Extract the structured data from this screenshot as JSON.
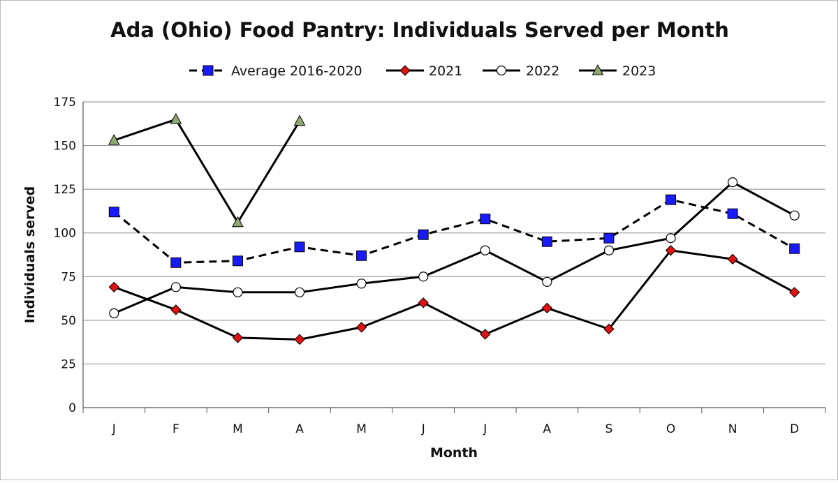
{
  "chart_data": {
    "type": "line",
    "title": "Ada (Ohio) Food Pantry: Individuals Served per Month",
    "xlabel": "Month",
    "ylabel": "Individuals  served",
    "categories": [
      "J",
      "F",
      "M",
      "A",
      "M",
      "J",
      "J",
      "A",
      "S",
      "O",
      "N",
      "D"
    ],
    "ylim": [
      0,
      175
    ],
    "yticks": [
      0,
      25,
      50,
      75,
      100,
      125,
      150,
      175
    ],
    "grid": true,
    "legend": "top",
    "series": [
      {
        "name": "Average 2016-2020",
        "marker": "square",
        "dashed": true,
        "color": "#1a1aff",
        "values": [
          112,
          83,
          84,
          92,
          87,
          99,
          108,
          95,
          97,
          119,
          111,
          91
        ]
      },
      {
        "name": "2021",
        "marker": "diamond",
        "dashed": false,
        "color": "#e01010",
        "values": [
          69,
          56,
          40,
          39,
          46,
          60,
          42,
          57,
          45,
          90,
          85,
          66
        ]
      },
      {
        "name": "2022",
        "marker": "circle",
        "dashed": false,
        "color": "#ffffff",
        "values": [
          54,
          69,
          66,
          66,
          71,
          75,
          90,
          72,
          90,
          97,
          129,
          110
        ]
      },
      {
        "name": "2023",
        "marker": "triangle",
        "dashed": false,
        "color": "#8fa870",
        "values": [
          153,
          165,
          106,
          164,
          null,
          null,
          null,
          null,
          null,
          null,
          null,
          null
        ]
      }
    ]
  }
}
